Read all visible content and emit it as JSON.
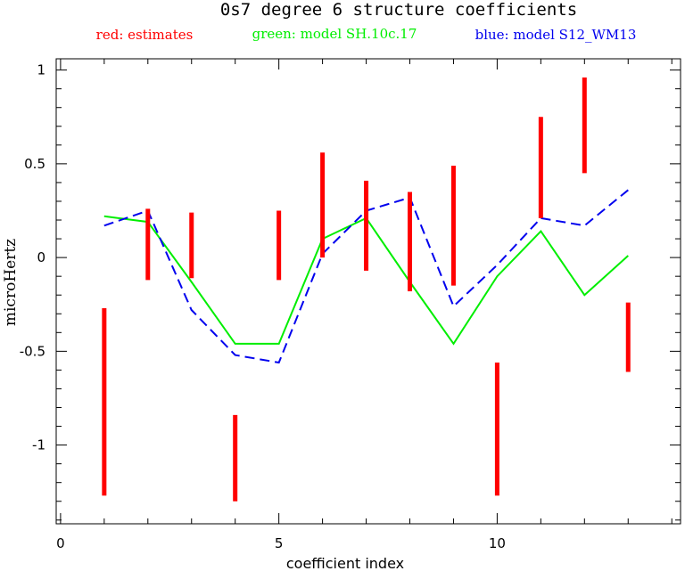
{
  "chart_data": {
    "type": "line",
    "title": "0s7 degree 6 structure coefficients",
    "legend": [
      {
        "text": "red: estimates",
        "color": "#ff0000"
      },
      {
        "text": "green: model SH.10c.17",
        "color": "#00ee00"
      },
      {
        "text": "blue: model S12_WM13",
        "color": "#0000ee"
      }
    ],
    "xlabel": "coefficient index",
    "ylabel": "microHertz",
    "xlim": [
      -0.1,
      14.2
    ],
    "ylim": [
      -1.42,
      1.06
    ],
    "x_ticks": [
      0,
      5,
      10
    ],
    "y_ticks": [
      1,
      0.5,
      0,
      -0.5,
      -1
    ],
    "y_tick_labels": [
      "1",
      "0.5",
      "0",
      "-0.5",
      "-1"
    ],
    "x_tick_labels": [
      "0",
      "5",
      "10"
    ],
    "estimates": [
      {
        "x": 1,
        "low": -1.27,
        "high": -0.27
      },
      {
        "x": 2,
        "low": -0.12,
        "high": 0.26
      },
      {
        "x": 3,
        "low": -0.11,
        "high": 0.24
      },
      {
        "x": 4,
        "low": -1.3,
        "high": -0.84
      },
      {
        "x": 5,
        "low": -0.12,
        "high": 0.25
      },
      {
        "x": 6,
        "low": 0.0,
        "high": 0.56
      },
      {
        "x": 7,
        "low": -0.07,
        "high": 0.41
      },
      {
        "x": 8,
        "low": -0.18,
        "high": 0.35
      },
      {
        "x": 9,
        "low": -0.15,
        "high": 0.49
      },
      {
        "x": 10,
        "low": -1.27,
        "high": -0.56
      },
      {
        "x": 11,
        "low": 0.21,
        "high": 0.75
      },
      {
        "x": 12,
        "low": 0.45,
        "high": 0.96
      },
      {
        "x": 13,
        "low": -0.61,
        "high": -0.24
      }
    ],
    "series": [
      {
        "name": "model SH.10c.17",
        "color": "#00ee00",
        "style": "solid",
        "x": [
          1,
          2,
          3,
          4,
          5,
          6,
          7,
          8,
          9,
          10,
          11,
          12,
          13
        ],
        "values": [
          0.22,
          0.19,
          -0.13,
          -0.46,
          -0.46,
          0.1,
          0.21,
          -0.13,
          -0.46,
          -0.1,
          0.14,
          -0.2,
          0.01
        ]
      },
      {
        "name": "model S12_WM13",
        "color": "#0000ee",
        "style": "dashed",
        "x": [
          1,
          2,
          3,
          4,
          5,
          6,
          7,
          8,
          9,
          10,
          11,
          12,
          13
        ],
        "values": [
          0.17,
          0.25,
          -0.28,
          -0.52,
          -0.56,
          0.02,
          0.25,
          0.32,
          -0.26,
          -0.04,
          0.21,
          0.17,
          0.36
        ]
      }
    ]
  }
}
